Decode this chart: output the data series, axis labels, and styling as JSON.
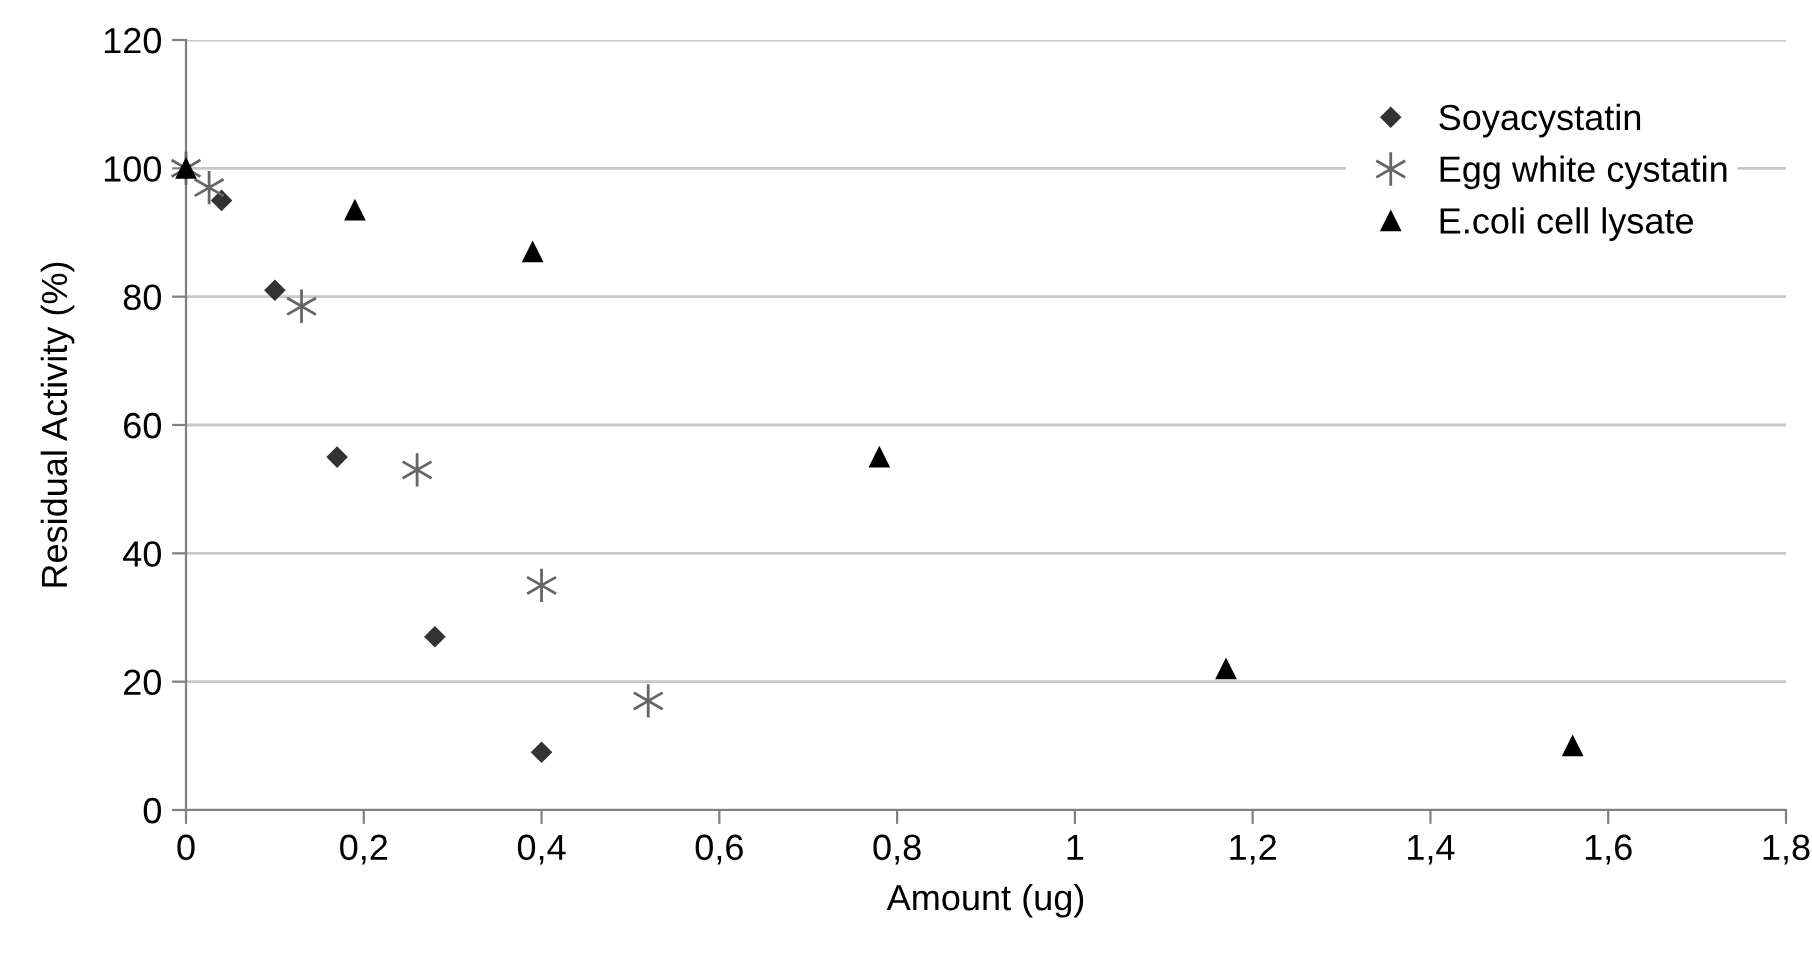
{
  "chart_data": {
    "type": "scatter",
    "xlabel": "Amount (ug)",
    "ylabel": "Residual Activity (%)",
    "xlim": [
      0,
      1.8
    ],
    "ylim": [
      0,
      120
    ],
    "xticks": [
      0,
      {
        "value": 0.2,
        "label": "0,2"
      },
      {
        "value": 0.4,
        "label": "0,4"
      },
      {
        "value": 0.6,
        "label": "0,6"
      },
      {
        "value": 0.8,
        "label": "0,8"
      },
      1,
      {
        "value": 1.2,
        "label": "1,2"
      },
      {
        "value": 1.4,
        "label": "1,4"
      },
      {
        "value": 1.6,
        "label": "1,6"
      },
      {
        "value": 1.8,
        "label": "1,8"
      }
    ],
    "yticks": [
      0,
      20,
      40,
      60,
      80,
      100,
      120
    ],
    "grid": "y",
    "legend": "top right",
    "series": [
      {
        "name": "Soyacystatin",
        "color": "#333333",
        "marker": "diamond",
        "x": [
          0.04,
          0.1,
          0.17,
          0.28,
          0.4
        ],
        "values": [
          95,
          81,
          55,
          27,
          9
        ]
      },
      {
        "name": "Egg white cystatin",
        "color": "#666666",
        "marker": "cross",
        "x": [
          0,
          0.026,
          0.13,
          0.26,
          0.4,
          0.52
        ],
        "values": [
          100,
          97,
          78.5,
          53,
          35,
          17
        ]
      },
      {
        "name": "E.coli cell lysate",
        "color": "#000000",
        "marker": "triangle",
        "x": [
          0,
          0.19,
          0.39,
          0.78,
          1.17,
          1.56
        ],
        "values": [
          100,
          93.5,
          87,
          55,
          22,
          10
        ]
      }
    ]
  }
}
